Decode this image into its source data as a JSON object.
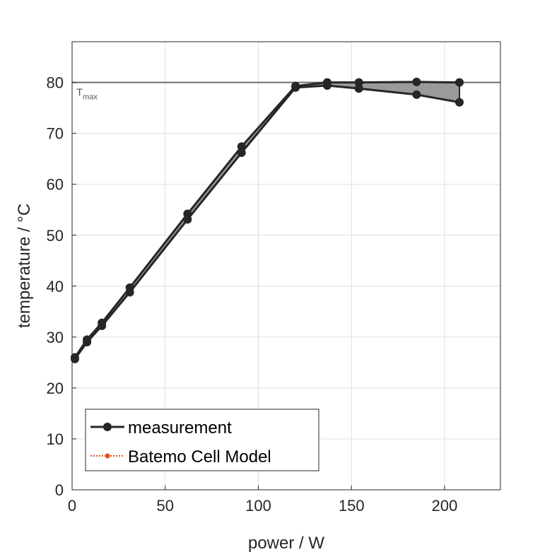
{
  "chart_data": {
    "type": "line",
    "xlabel": "power / W",
    "ylabel": "temperature / °C",
    "xlim": [
      0,
      230
    ],
    "ylim": [
      0,
      88
    ],
    "xticks": [
      0,
      50,
      100,
      150,
      200
    ],
    "yticks": [
      0,
      10,
      20,
      30,
      40,
      50,
      60,
      70,
      80
    ],
    "grid": true,
    "legend_position": "bottom-left",
    "reference_line": {
      "y": 80,
      "label_main": "T",
      "label_sub": "max"
    },
    "series": [
      {
        "name": "measurement",
        "style": "solid-circle",
        "upper": {
          "x": [
            1.5,
            8,
            16,
            31,
            62,
            91,
            120,
            137,
            154,
            185,
            208
          ],
          "y": [
            26,
            29.5,
            32.8,
            39.7,
            54.2,
            67.4,
            79.3,
            80,
            80,
            80.1,
            80
          ]
        },
        "lower": {
          "x": [
            1.5,
            8,
            16,
            31,
            62,
            91,
            120,
            137,
            154,
            185,
            208
          ],
          "y": [
            25.7,
            29,
            32.2,
            38.8,
            53.1,
            66.2,
            79,
            79.4,
            78.8,
            77.6,
            76.1
          ]
        }
      },
      {
        "name": "Batemo Cell Model",
        "style": "dotted-circle",
        "upper": {
          "x": [],
          "y": []
        },
        "lower": {
          "x": [],
          "y": []
        }
      }
    ],
    "colors": {
      "measurement": "#262626",
      "model": "#d95319",
      "fill": "#9a9a9a",
      "grid": "#dfdfdf",
      "reference": "#6e6e6e"
    }
  }
}
